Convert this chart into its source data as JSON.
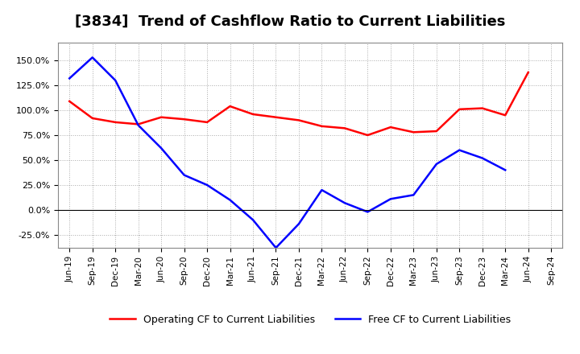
{
  "title": "[3834]  Trend of Cashflow Ratio to Current Liabilities",
  "x_labels": [
    "Jun-19",
    "Sep-19",
    "Dec-19",
    "Mar-20",
    "Jun-20",
    "Sep-20",
    "Dec-20",
    "Mar-21",
    "Jun-21",
    "Sep-21",
    "Dec-21",
    "Mar-22",
    "Jun-22",
    "Sep-22",
    "Dec-22",
    "Mar-23",
    "Jun-23",
    "Sep-23",
    "Dec-23",
    "Mar-24",
    "Jun-24",
    "Sep-24"
  ],
  "operating_cf": [
    1.09,
    0.92,
    0.88,
    0.86,
    0.93,
    0.91,
    0.88,
    1.04,
    0.96,
    0.93,
    0.9,
    0.84,
    0.82,
    0.75,
    0.83,
    0.78,
    0.79,
    1.01,
    1.02,
    0.95,
    1.38,
    null
  ],
  "free_cf": [
    1.32,
    1.53,
    1.3,
    0.85,
    0.62,
    0.35,
    0.25,
    0.1,
    -0.1,
    -0.38,
    -0.14,
    0.2,
    0.07,
    -0.02,
    0.11,
    0.15,
    0.46,
    0.6,
    0.52,
    0.4,
    null,
    null
  ],
  "operating_color": "#ff0000",
  "free_color": "#0000ff",
  "ylim_min": -0.38,
  "ylim_max": 1.68,
  "yticks": [
    -0.25,
    0.0,
    0.25,
    0.5,
    0.75,
    1.0,
    1.25,
    1.5
  ],
  "background_color": "#ffffff",
  "grid_color": "#aaaaaa",
  "title_fontsize": 13
}
